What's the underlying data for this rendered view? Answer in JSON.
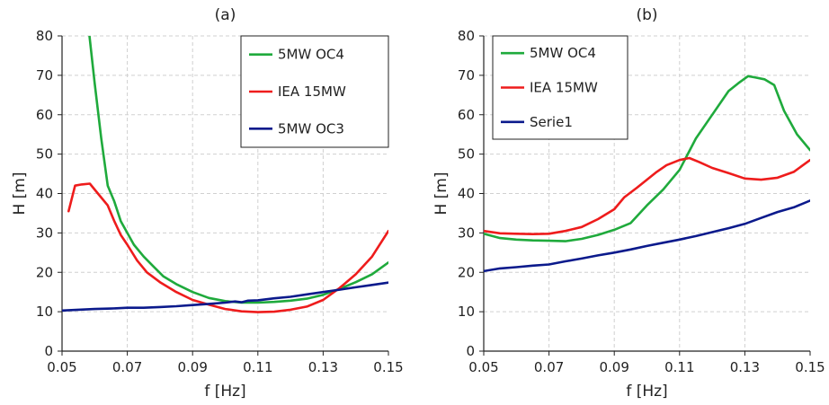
{
  "chart_data": [
    {
      "type": "line",
      "title": "(a)",
      "xlabel": "f [Hz]",
      "ylabel": "H [m]",
      "xlim": [
        0.05,
        0.15
      ],
      "ylim": [
        0,
        80
      ],
      "xticks": [
        "0.05",
        "0.07",
        "0.09",
        "0.11",
        "0.13",
        "0.15"
      ],
      "yticks": [
        "0",
        "10",
        "20",
        "30",
        "40",
        "50",
        "60",
        "70",
        "80"
      ],
      "grid": true,
      "legend_position": "top-right",
      "series": [
        {
          "name": "5MW OC4",
          "color": "#1faa3c",
          "x": [
            0.0584,
            0.06,
            0.062,
            0.064,
            0.066,
            0.068,
            0.07,
            0.072,
            0.075,
            0.078,
            0.081,
            0.085,
            0.09,
            0.095,
            0.1,
            0.105,
            0.11,
            0.115,
            0.12,
            0.125,
            0.13,
            0.135,
            0.14,
            0.145,
            0.15
          ],
          "y": [
            80,
            68,
            54,
            42,
            38,
            33,
            30,
            27,
            24,
            21.5,
            19,
            17,
            15,
            13.5,
            12.7,
            12.3,
            12.3,
            12.5,
            12.8,
            13.3,
            14.3,
            15.8,
            17.5,
            19.5,
            22.5
          ]
        },
        {
          "name": "IEA 15MW",
          "color": "#ee1c1c",
          "x": [
            0.052,
            0.054,
            0.056,
            0.0585,
            0.061,
            0.064,
            0.066,
            0.068,
            0.07,
            0.073,
            0.076,
            0.08,
            0.085,
            0.09,
            0.095,
            0.1,
            0.105,
            0.11,
            0.115,
            0.12,
            0.125,
            0.13,
            0.135,
            0.14,
            0.145,
            0.15
          ],
          "y": [
            35.5,
            42,
            42.3,
            42.5,
            40,
            37,
            33,
            29.5,
            27,
            23,
            20,
            17.5,
            15,
            13,
            11.8,
            10.7,
            10.1,
            9.9,
            10,
            10.5,
            11.3,
            13,
            16,
            19.5,
            24,
            30.5
          ]
        },
        {
          "name": "5MW OC3",
          "color": "#0b1a8c",
          "x": [
            0.05,
            0.055,
            0.06,
            0.065,
            0.07,
            0.075,
            0.08,
            0.085,
            0.09,
            0.095,
            0.1,
            0.103,
            0.105,
            0.107,
            0.11,
            0.115,
            0.12,
            0.125,
            0.13,
            0.135,
            0.14,
            0.145,
            0.15
          ],
          "y": [
            10.3,
            10.5,
            10.7,
            10.8,
            11,
            11,
            11.2,
            11.4,
            11.7,
            12,
            12.3,
            12.6,
            12.4,
            12.8,
            12.9,
            13.4,
            13.8,
            14.4,
            15,
            15.6,
            16.2,
            16.8,
            17.4
          ]
        }
      ]
    },
    {
      "type": "line",
      "title": "(b)",
      "xlabel": "f [Hz]",
      "ylabel": "H [m]",
      "xlim": [
        0.05,
        0.15
      ],
      "ylim": [
        0,
        80
      ],
      "xticks": [
        "0.05",
        "0.07",
        "0.09",
        "0.11",
        "0.13",
        "0.15"
      ],
      "yticks": [
        "0",
        "10",
        "20",
        "30",
        "40",
        "50",
        "60",
        "70",
        "80"
      ],
      "grid": true,
      "legend_position": "top-left",
      "series": [
        {
          "name": "5MW OC4",
          "color": "#1faa3c",
          "x": [
            0.05,
            0.055,
            0.06,
            0.065,
            0.07,
            0.075,
            0.08,
            0.085,
            0.09,
            0.095,
            0.1,
            0.105,
            0.11,
            0.115,
            0.12,
            0.125,
            0.128,
            0.131,
            0.133,
            0.136,
            0.139,
            0.142,
            0.146,
            0.15
          ],
          "y": [
            29.8,
            28.7,
            28.3,
            28.1,
            28,
            27.9,
            28.5,
            29.5,
            30.8,
            32.5,
            37,
            41,
            46,
            54,
            60,
            66,
            68,
            69.8,
            69.5,
            69,
            67.5,
            61,
            55,
            51
          ]
        },
        {
          "name": "IEA 15MW",
          "color": "#ee1c1c",
          "x": [
            0.05,
            0.055,
            0.06,
            0.065,
            0.07,
            0.075,
            0.08,
            0.085,
            0.09,
            0.093,
            0.097,
            0.1,
            0.103,
            0.106,
            0.11,
            0.113,
            0.116,
            0.12,
            0.125,
            0.13,
            0.135,
            0.14,
            0.145,
            0.15
          ],
          "y": [
            30.5,
            29.9,
            29.8,
            29.7,
            29.8,
            30.5,
            31.5,
            33.5,
            36,
            39,
            41.5,
            43.5,
            45.5,
            47.2,
            48.5,
            49,
            48,
            46.5,
            45.2,
            43.8,
            43.5,
            44,
            45.5,
            48.5
          ]
        },
        {
          "name": "Serie1",
          "color": "#0b1a8c",
          "x": [
            0.05,
            0.055,
            0.06,
            0.065,
            0.07,
            0.075,
            0.08,
            0.085,
            0.09,
            0.095,
            0.1,
            0.105,
            0.11,
            0.115,
            0.12,
            0.125,
            0.13,
            0.135,
            0.14,
            0.145,
            0.15
          ],
          "y": [
            20.3,
            21,
            21.3,
            21.7,
            22,
            22.8,
            23.5,
            24.3,
            25,
            25.8,
            26.7,
            27.5,
            28.3,
            29.2,
            30.2,
            31.2,
            32.3,
            33.8,
            35.3,
            36.5,
            38.2
          ]
        }
      ]
    }
  ]
}
